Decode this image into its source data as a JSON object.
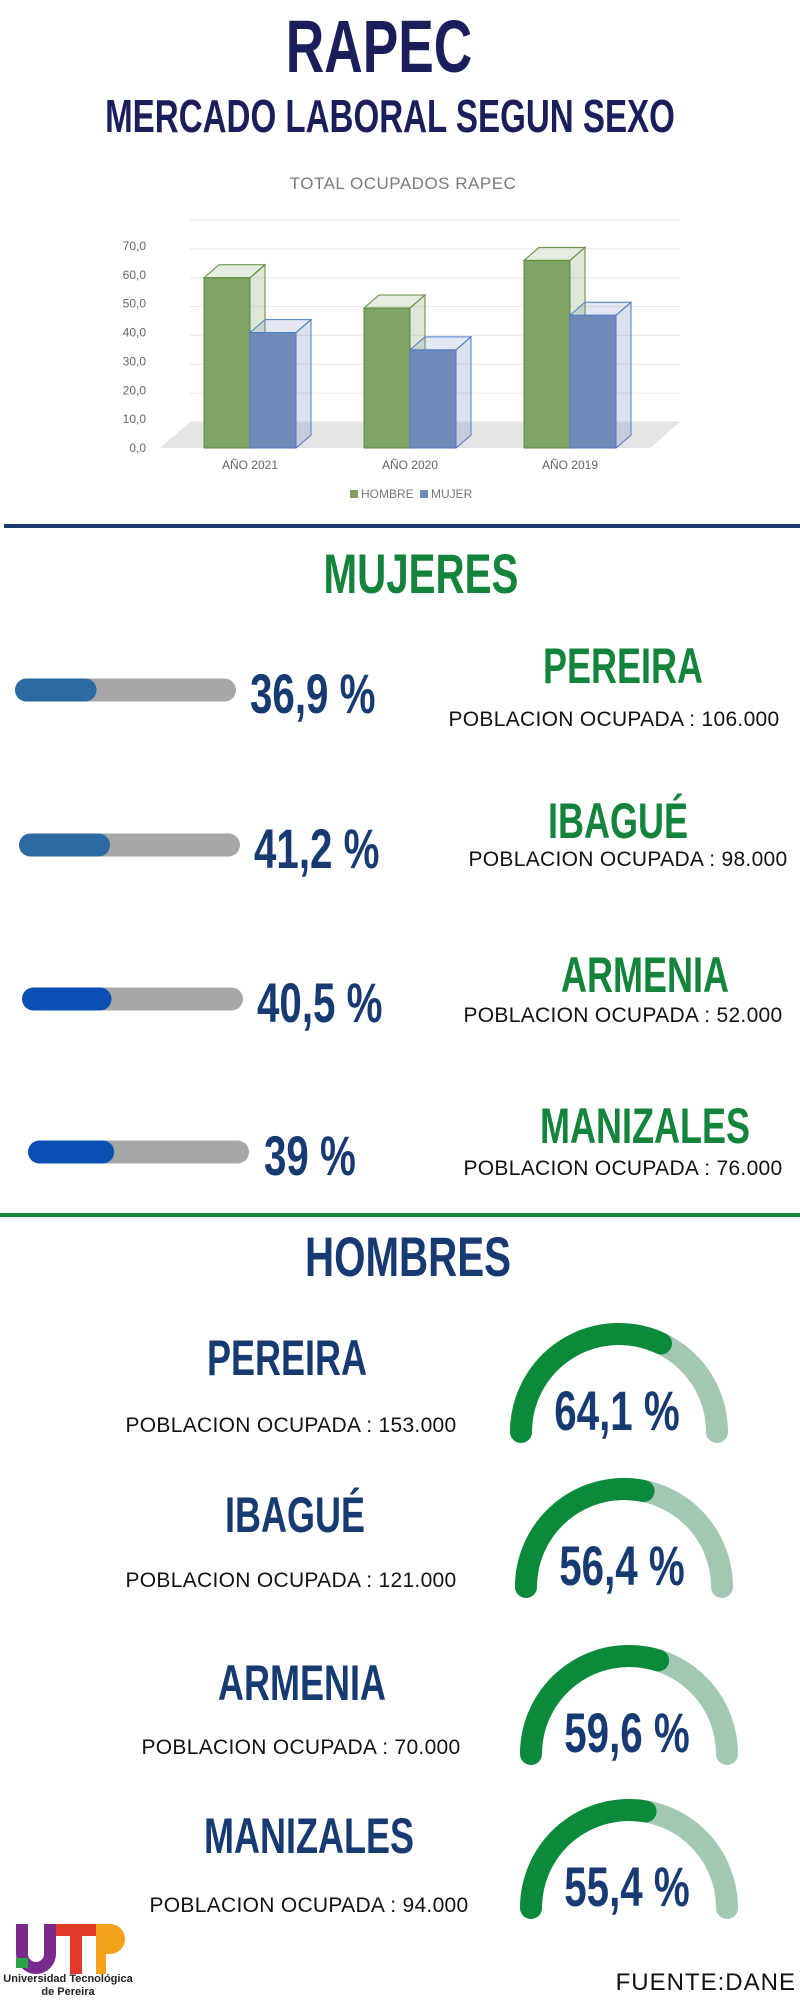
{
  "header": {
    "title": "RAPEC",
    "subtitle": "MERCADO LABORAL SEGUN SEXO"
  },
  "chart_data": {
    "type": "bar",
    "title": "TOTAL OCUPADOS RAPEC",
    "categories": [
      "AÑO 2021",
      "AÑO 2020",
      "AÑO 2019"
    ],
    "series": [
      {
        "name": "HOMBRE",
        "color": "#7fa364",
        "values": [
          59,
          48.5,
          65
        ]
      },
      {
        "name": "MUJER",
        "color": "#7189b8",
        "values": [
          40,
          34,
          46
        ]
      }
    ],
    "ylim": [
      0,
      70
    ],
    "yticks": [
      {
        "value": 0,
        "label": "0,0"
      },
      {
        "value": 10,
        "label": "10,0"
      },
      {
        "value": 20,
        "label": "20,0"
      },
      {
        "value": 30,
        "label": "30,0"
      },
      {
        "value": 40,
        "label": "40,0"
      },
      {
        "value": 50,
        "label": "50,0"
      },
      {
        "value": 60,
        "label": "60,0"
      },
      {
        "value": 70,
        "label": "70,0"
      }
    ],
    "grid": true,
    "legend": "bottom"
  },
  "mujeres": {
    "title": "MUJERES",
    "xlim": [
      0,
      100
    ],
    "items": [
      {
        "city": "PEREIRA",
        "population": "POBLACION OCUPADA : 106.000",
        "value": 36.9,
        "value_label": "36,9 %"
      },
      {
        "city": "IBAGUÉ",
        "population": "POBLACION OCUPADA : 98.000",
        "value": 41.2,
        "value_label": "41,2 %"
      },
      {
        "city": "ARMENIA",
        "population": "POBLACION OCUPADA : 52.000",
        "value": 40.5,
        "value_label": "40,5 %"
      },
      {
        "city": "MANIZALES",
        "population": "POBLACION OCUPADA : 76.000",
        "value": 39,
        "value_label": "39 %"
      }
    ]
  },
  "hombres": {
    "title": "HOMBRES",
    "xlim": [
      0,
      100
    ],
    "items": [
      {
        "city": "PEREIRA",
        "population": "POBLACION OCUPADA : 153.000",
        "value": 64.1,
        "value_label": "64,1 %"
      },
      {
        "city": "IBAGUÉ",
        "population": "POBLACION OCUPADA : 121.000",
        "value": 56.4,
        "value_label": "56,4 %"
      },
      {
        "city": "ARMENIA",
        "population": "POBLACION OCUPADA : 70.000",
        "value": 59.6,
        "value_label": "59,6 %"
      },
      {
        "city": "MANIZALES",
        "population": "POBLACION OCUPADA : 94.000",
        "value": 55.4,
        "value_label": "55,4 %"
      }
    ]
  },
  "logo": {
    "lines": [
      "Universidad Tecnológica",
      "de Pereira"
    ]
  },
  "footer": {
    "source": "FUENTE:DANE"
  }
}
